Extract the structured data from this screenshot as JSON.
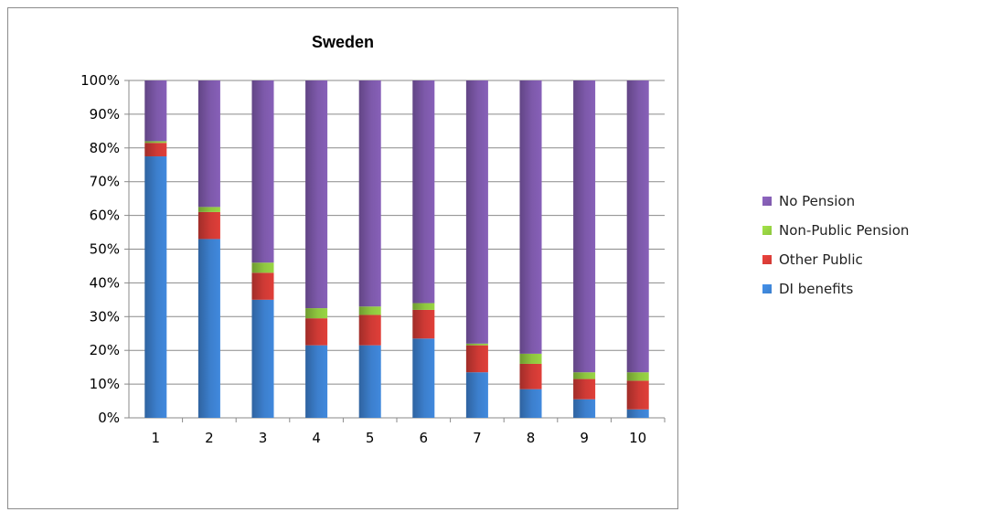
{
  "chart_data": {
    "type": "bar",
    "stacked": "percent",
    "title": "Sweden",
    "xlabel": "",
    "ylabel": "",
    "categories": [
      "1",
      "2",
      "3",
      "4",
      "5",
      "6",
      "7",
      "8",
      "9",
      "10"
    ],
    "y_ticks": [
      "0%",
      "10%",
      "20%",
      "30%",
      "40%",
      "50%",
      "60%",
      "70%",
      "80%",
      "90%",
      "100%"
    ],
    "ylim": [
      0,
      100
    ],
    "grid": true,
    "legend_position": "right",
    "series": [
      {
        "name": "DI benefits",
        "color": "#3c7fcd",
        "values": [
          77.5,
          53,
          35,
          21.5,
          21.5,
          23.5,
          13.5,
          8.5,
          5.5,
          2.5
        ]
      },
      {
        "name": "Other Public",
        "color": "#cf3a35",
        "values": [
          4,
          8,
          8,
          8,
          9,
          8.5,
          8,
          7.5,
          6,
          8.5
        ]
      },
      {
        "name": "Non-Public Pension",
        "color": "#8ec63f",
        "values": [
          0.5,
          1.5,
          3,
          3,
          2.5,
          2,
          0.5,
          3,
          2,
          2.5
        ]
      },
      {
        "name": "No Pension",
        "color": "#7d59aa",
        "values": [
          18,
          37.5,
          54,
          67.5,
          67,
          66,
          78,
          81,
          86.5,
          86.5
        ]
      }
    ],
    "legend_order": [
      "No Pension",
      "Non-Public Pension",
      "Other Public",
      "DI benefits"
    ]
  }
}
